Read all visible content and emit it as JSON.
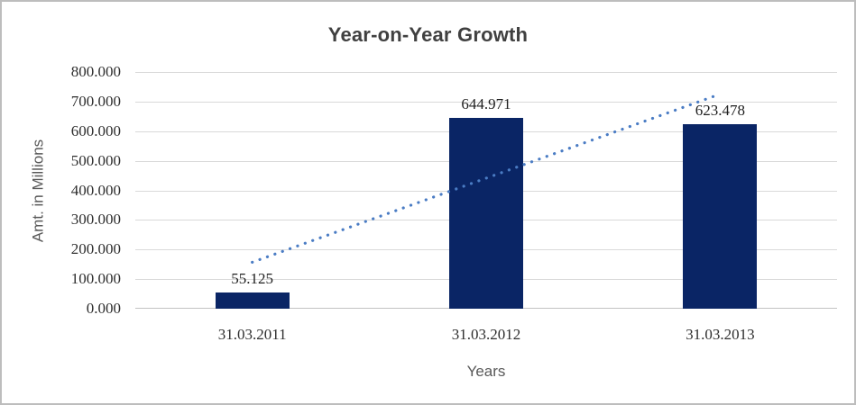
{
  "chart_data": {
    "type": "bar",
    "title": "Year-on-Year Growth",
    "xlabel": "Years",
    "ylabel": "Amt. in Millions",
    "categories": [
      "31.03.2011",
      "31.03.2012",
      "31.03.2013"
    ],
    "values": [
      55.125,
      644.971,
      623.478
    ],
    "data_labels": [
      "55.125",
      "644.971",
      "623.478"
    ],
    "ylim": [
      0,
      800
    ],
    "ytick_step": 100,
    "ytick_labels": [
      "0.000",
      "100.000",
      "200.000",
      "300.000",
      "400.000",
      "500.000",
      "600.000",
      "700.000",
      "800.000"
    ],
    "grid": true,
    "legend_position": "none",
    "trendline": {
      "type": "linear",
      "style": "dotted",
      "endpoint_values": [
        157.0,
        725.4
      ]
    }
  },
  "colors": {
    "bar": "#0a2565",
    "trendline": "#4a7cc4",
    "gridline": "#d9d9d9",
    "axis_line": "#c2c2c2",
    "title_text": "#404040",
    "tick_text": "#2e2e2e",
    "axis_title_text": "#595959",
    "border": "#bdbdbd",
    "background": "#ffffff"
  }
}
